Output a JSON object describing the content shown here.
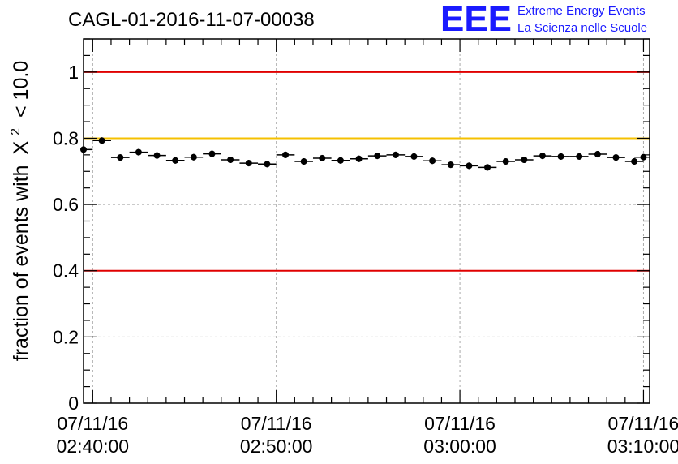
{
  "logo": {
    "mark": "EEE",
    "line1": "Extreme Energy Events",
    "line2": "La Scienza nelle Scuole"
  },
  "chart_data": {
    "type": "scatter",
    "title": "CAGL-01-2016-11-07-00038",
    "ylabel": "fraction of events with",
    "ylabel_symbol": "X",
    "ylabel_exponent": "2",
    "ylabel_tail": "< 10.0",
    "xlabel": "",
    "ylim": [
      0,
      1.1
    ],
    "xlim": [
      "02:39:30",
      "03:10:20"
    ],
    "y_ticks": [
      "0",
      "0.2",
      "0.4",
      "0.6",
      "0.8",
      "1"
    ],
    "x_ticks": [
      {
        "date": "07/11/16",
        "time": "02:40:00"
      },
      {
        "date": "07/11/16",
        "time": "02:50:00"
      },
      {
        "date": "07/11/16",
        "time": "03:00:00"
      },
      {
        "date": "07/11/16",
        "time": "03:10:00"
      }
    ],
    "grid": true,
    "reference_lines": [
      {
        "y": 1.0,
        "color": "#e00000"
      },
      {
        "y": 0.8,
        "color": "#f5c000"
      },
      {
        "y": 0.4,
        "color": "#e00000"
      }
    ],
    "series": [
      {
        "x": [
          "02:39:30",
          "02:40:30",
          "02:41:30",
          "02:42:30",
          "02:43:30",
          "02:44:30",
          "02:45:30",
          "02:46:30",
          "02:47:30",
          "02:48:30",
          "02:49:30",
          "02:50:30",
          "02:51:30",
          "02:52:30",
          "02:53:30",
          "02:54:30",
          "02:55:30",
          "02:56:30",
          "02:57:30",
          "02:58:30",
          "02:59:30",
          "03:00:30",
          "03:01:30",
          "03:02:30",
          "03:03:30",
          "03:04:30",
          "03:05:30",
          "03:06:30",
          "03:07:30",
          "03:08:30",
          "03:09:30",
          "03:10:00"
        ],
        "y": [
          0.766,
          0.793,
          0.742,
          0.758,
          0.748,
          0.733,
          0.743,
          0.753,
          0.735,
          0.725,
          0.722,
          0.75,
          0.73,
          0.74,
          0.733,
          0.738,
          0.747,
          0.75,
          0.745,
          0.732,
          0.72,
          0.717,
          0.712,
          0.73,
          0.735,
          0.747,
          0.745,
          0.745,
          0.752,
          0.742,
          0.73,
          0.743
        ],
        "color": "#000000"
      }
    ]
  }
}
